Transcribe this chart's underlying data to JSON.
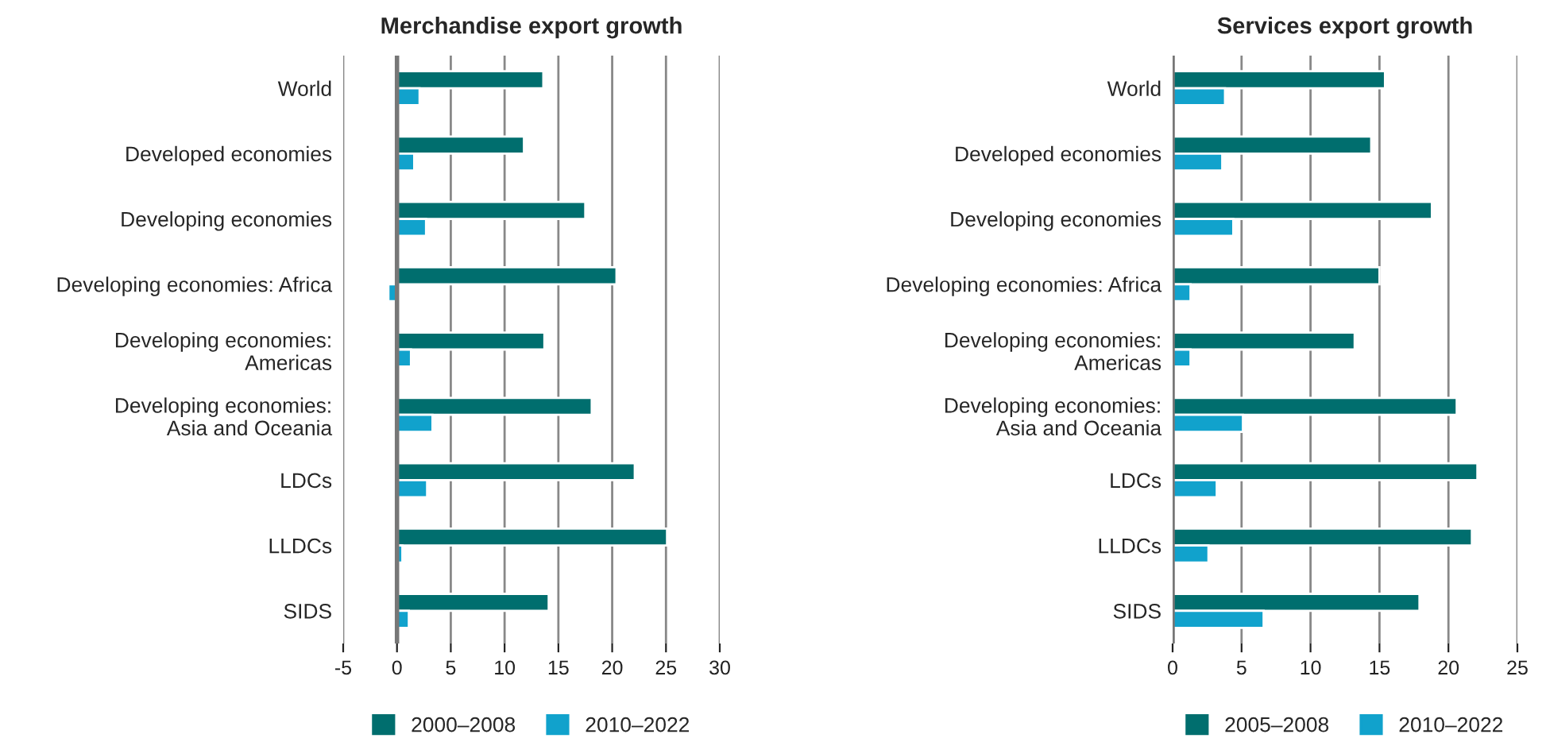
{
  "chart_data": [
    {
      "type": "bar",
      "orientation": "horizontal",
      "title": "Merchandise export growth",
      "categories": [
        "World",
        "Developed economies",
        "Developing economies",
        "Developing economies: Africa",
        "Developing economies:\nAmericas",
        "Developing economies:\nAsia and Oceania",
        "LDCs",
        "LLDCs",
        "SIDS"
      ],
      "series": [
        {
          "name": "2000–2008",
          "color": "#006e6e",
          "values": [
            13.6,
            11.8,
            17.5,
            20.4,
            13.7,
            18.1,
            22.1,
            25.1,
            14.1
          ]
        },
        {
          "name": "2010–2022",
          "color": "#11a2cc",
          "values": [
            2.1,
            1.6,
            2.7,
            -0.8,
            1.3,
            3.3,
            2.8,
            0.5,
            1.1
          ]
        }
      ],
      "xlim": [
        -5,
        30
      ],
      "xticks": [
        -5,
        0,
        5,
        10,
        15,
        20,
        25,
        30
      ],
      "grid": "x",
      "legend": "bottom"
    },
    {
      "type": "bar",
      "orientation": "horizontal",
      "title": "Services export growth",
      "categories": [
        "World",
        "Developed economies",
        "Developing economies",
        "Developing economies: Africa",
        "Developing economies:\nAmericas",
        "Developing economies:\nAsia and Oceania",
        "LDCs",
        "LLDCs",
        "SIDS"
      ],
      "series": [
        {
          "name": "2005–2008",
          "color": "#006e6e",
          "values": [
            15.4,
            14.4,
            18.8,
            15.0,
            13.2,
            20.6,
            22.1,
            21.7,
            17.9
          ]
        },
        {
          "name": "2010–2022",
          "color": "#11a2cc",
          "values": [
            3.8,
            3.6,
            4.4,
            1.3,
            1.3,
            5.1,
            3.2,
            2.6,
            6.6
          ]
        }
      ],
      "xlim": [
        0,
        25
      ],
      "xticks": [
        0,
        5,
        10,
        15,
        20,
        25
      ],
      "grid": "x",
      "legend": "bottom"
    }
  ]
}
